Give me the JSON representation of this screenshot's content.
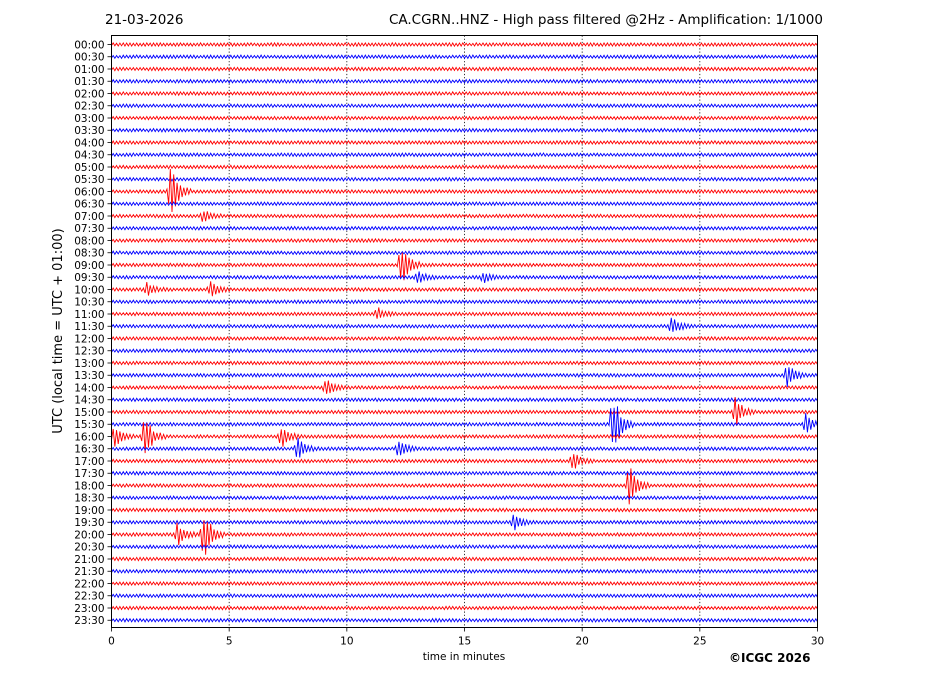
{
  "header": {
    "date": "21-03-2026",
    "title": "CA.CGRN..HNZ - High pass filtered @2Hz - Amplification: 1/1000"
  },
  "copyright": "©ICGC 2026",
  "colors": {
    "even_rows": "#ff0000",
    "odd_rows": "#0000ff",
    "grid": "#000000"
  },
  "chart_data": {
    "type": "line",
    "title": "CA.CGRN..HNZ - High pass filtered @2Hz - Amplification: 1/1000",
    "xlabel": "time in minutes",
    "ylabel": "UTC (local time = UTC + 01:00)",
    "xlim": [
      0,
      30
    ],
    "x_ticks": [
      "0",
      "5",
      "10",
      "15",
      "20",
      "25",
      "30"
    ],
    "grid": "vertical dotted lines every 5 minutes",
    "row_labels": [
      "00:00",
      "00:30",
      "01:00",
      "01:30",
      "02:00",
      "02:30",
      "03:00",
      "03:30",
      "04:00",
      "04:30",
      "05:00",
      "05:30",
      "06:00",
      "06:30",
      "07:00",
      "07:30",
      "08:00",
      "08:30",
      "09:00",
      "09:30",
      "10:00",
      "10:30",
      "11:00",
      "11:30",
      "12:00",
      "12:30",
      "13:00",
      "13:30",
      "14:00",
      "14:30",
      "15:00",
      "15:30",
      "16:00",
      "16:30",
      "17:00",
      "17:30",
      "18:00",
      "18:30",
      "19:00",
      "19:30",
      "20:00",
      "20:30",
      "21:00",
      "21:30",
      "22:00",
      "22:30",
      "23:00",
      "23:30"
    ],
    "events": [
      {
        "row": "06:00",
        "t": 2.5,
        "amp": 2.6
      },
      {
        "row": "07:00",
        "t": 3.9,
        "amp": 0.5
      },
      {
        "row": "09:00",
        "t": 12.3,
        "amp": 2.0
      },
      {
        "row": "09:30",
        "t": 13.0,
        "amp": 0.6
      },
      {
        "row": "09:30",
        "t": 15.8,
        "amp": 0.5
      },
      {
        "row": "10:00",
        "t": 1.5,
        "amp": 0.5
      },
      {
        "row": "10:00",
        "t": 4.2,
        "amp": 0.7
      },
      {
        "row": "11:00",
        "t": 11.3,
        "amp": 0.5
      },
      {
        "row": "11:30",
        "t": 23.8,
        "amp": 0.8
      },
      {
        "row": "13:30",
        "t": 28.7,
        "amp": 1.0
      },
      {
        "row": "14:00",
        "t": 9.1,
        "amp": 0.8
      },
      {
        "row": "15:00",
        "t": 26.5,
        "amp": 1.3
      },
      {
        "row": "15:30",
        "t": 21.3,
        "amp": 2.8
      },
      {
        "row": "15:30",
        "t": 29.5,
        "amp": 0.8
      },
      {
        "row": "16:00",
        "t": 0.1,
        "amp": 1.0
      },
      {
        "row": "16:00",
        "t": 1.4,
        "amp": 2.0
      },
      {
        "row": "16:00",
        "t": 7.2,
        "amp": 1.0
      },
      {
        "row": "16:30",
        "t": 7.9,
        "amp": 0.9
      },
      {
        "row": "16:30",
        "t": 12.2,
        "amp": 0.8
      },
      {
        "row": "17:00",
        "t": 19.6,
        "amp": 0.8
      },
      {
        "row": "18:00",
        "t": 22.0,
        "amp": 1.8
      },
      {
        "row": "19:30",
        "t": 17.1,
        "amp": 0.7
      },
      {
        "row": "20:00",
        "t": 2.8,
        "amp": 1.0
      },
      {
        "row": "20:00",
        "t": 3.9,
        "amp": 2.2
      }
    ]
  }
}
